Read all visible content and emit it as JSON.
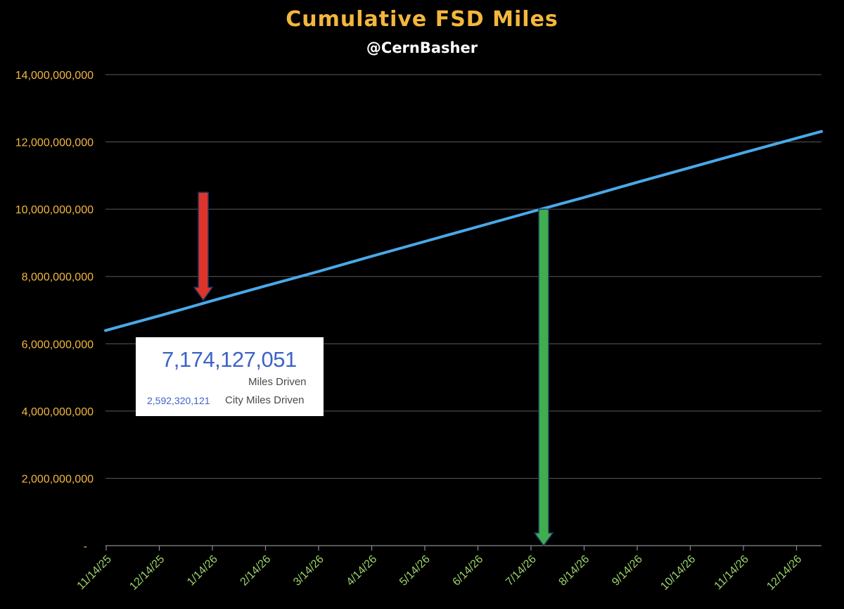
{
  "header": {
    "title": "Cumulative FSD Miles",
    "subtitle": "@CernBasher"
  },
  "callout": {
    "miles_value": "7,174,127,051",
    "miles_label": "Miles Driven",
    "city_value": "2,592,320,121",
    "city_label": "City Miles Driven"
  },
  "colors": {
    "title": "#f3b73d",
    "y_tick": "#f3b73d",
    "x_tick": "#9bd26a",
    "series": "#4aa8e8",
    "grid": "#5a5a5a",
    "red_arrow": "#e0332a",
    "green_arrow": "#3fae4f"
  },
  "chart_data": {
    "type": "line",
    "title": "Cumulative FSD Miles",
    "subtitle": "@CernBasher",
    "xlabel": "",
    "ylabel": "",
    "x_ticks": [
      "11/14/25",
      "12/14/25",
      "1/14/26",
      "2/14/26",
      "3/14/26",
      "4/14/26",
      "5/14/26",
      "6/14/26",
      "7/14/26",
      "8/14/26",
      "9/14/26",
      "10/14/26",
      "11/14/26",
      "12/14/26"
    ],
    "y_ticks": [
      "-",
      "2,000,000,000",
      "4,000,000,000",
      "6,000,000,000",
      "8,000,000,000",
      "10,000,000,000",
      "12,000,000,000",
      "14,000,000,000"
    ],
    "y_tick_values": [
      0,
      2000000000,
      4000000000,
      6000000000,
      8000000000,
      10000000000,
      12000000000,
      14000000000
    ],
    "ylim": [
      0,
      14000000000
    ],
    "grid": true,
    "series": [
      {
        "x": [
          "11/14/25",
          "12/14/25",
          "1/14/26",
          "2/14/26",
          "3/14/26",
          "4/14/26",
          "5/14/26",
          "6/14/26",
          "7/14/26",
          "8/14/26",
          "9/14/26",
          "10/14/26",
          "11/14/26",
          "12/14/26"
        ],
        "y": [
          6400000000,
          6830000000,
          7280000000,
          7720000000,
          8150000000,
          8600000000,
          9040000000,
          9480000000,
          9920000000,
          10350000000,
          10800000000,
          11240000000,
          11680000000,
          12110000000
        ]
      }
    ],
    "annotations": [
      {
        "type": "arrow-down",
        "color": "red",
        "x": "1/14/26",
        "y_from": 10500000000,
        "y_to": 7300000000
      },
      {
        "type": "arrow-down",
        "color": "green",
        "x": "7/14/26",
        "y_from": 10000000000,
        "y_to": 0
      }
    ]
  }
}
